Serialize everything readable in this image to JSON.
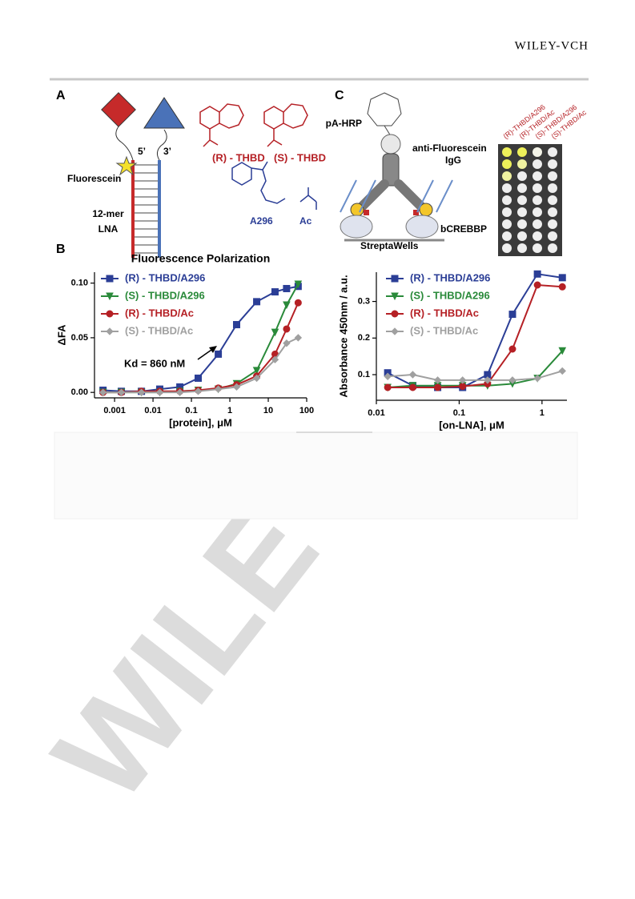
{
  "header": {
    "publisher": "WILEY-VCH"
  },
  "panels": {
    "a": "A",
    "b": "B",
    "c": "C"
  },
  "panel_a": {
    "fluorescein": "Fluorescein",
    "five_prime": "5’",
    "three_prime": "3’",
    "lna": [
      "12-mer",
      "LNA"
    ],
    "r_thbd": "(R) - THBD",
    "s_thbd": "(S) - THBD",
    "a296": "A296",
    "ac": "Ac"
  },
  "panel_c": {
    "pa_hrp": "pA-HRP",
    "antibody": [
      "anti-Fluorescein",
      "IgG"
    ],
    "protein": "bCREBBP",
    "wells": "StreptaWells",
    "plate_labels": [
      "(R)-THBD/A296",
      "(R)-THBD/Ac",
      "(S)-THBD/A296",
      "(S)-THBD/Ac"
    ]
  },
  "watermark": "WILE",
  "chart_data": [
    {
      "type": "line",
      "title": "Fluorescence Polarization",
      "xlabel": "[protein], μM",
      "ylabel": "ΔFA",
      "xscale": "log",
      "xlim": [
        0.0003,
        100
      ],
      "ylim": [
        -0.005,
        0.11
      ],
      "xticks": [
        0.001,
        0.01,
        0.1,
        1,
        10,
        100
      ],
      "yticks": [
        {
          "value": 0,
          "label": "0.00"
        },
        {
          "value": 0.05,
          "label": "0.05"
        },
        {
          "value": 0.1,
          "label": "0.10"
        }
      ],
      "legend": "upper left",
      "annotation": "Kd = 860 nM",
      "x": [
        0.0005,
        0.0015,
        0.005,
        0.015,
        0.05,
        0.15,
        0.5,
        1.5,
        5,
        15,
        30,
        60
      ],
      "series": [
        {
          "name": "(R) - THBD/A296",
          "color": "#2b3e96",
          "marker": "square",
          "values": [
            0.002,
            0.001,
            0.001,
            0.003,
            0.005,
            0.013,
            0.035,
            0.062,
            0.083,
            0.092,
            0.095,
            0.097
          ]
        },
        {
          "name": "(S) - THBD/A296",
          "color": "#2a8a3a",
          "marker": "triangle",
          "values": [
            0,
            0,
            0,
            0,
            0.001,
            0.002,
            0.003,
            0.008,
            0.02,
            0.055,
            0.08,
            0.099
          ]
        },
        {
          "name": "(R) - THBD/Ac",
          "color": "#b52025",
          "marker": "circle",
          "values": [
            0,
            0,
            0.001,
            0.001,
            0.001,
            0.002,
            0.004,
            0.007,
            0.015,
            0.035,
            0.058,
            0.082
          ]
        },
        {
          "name": "(S) - THBD/Ac",
          "color": "#a0a0a0",
          "marker": "diamond",
          "values": [
            0,
            0,
            0,
            0,
            0,
            0.001,
            0.003,
            0.005,
            0.013,
            0.03,
            0.045,
            0.05
          ]
        }
      ]
    },
    {
      "type": "line",
      "xlabel": "[on-LNA], μM",
      "ylabel": "Absorbance 450nm / a.u.",
      "xscale": "log",
      "xlim": [
        0.01,
        2
      ],
      "ylim": [
        0.03,
        0.38
      ],
      "xticks": [
        0.01,
        0.1,
        1
      ],
      "yticks": [
        0.1,
        0.2,
        0.3
      ],
      "legend": "upper left",
      "x": [
        0.0137,
        0.0275,
        0.055,
        0.11,
        0.22,
        0.44,
        0.88,
        1.76
      ],
      "series": [
        {
          "name": "(R) - THBD/A296",
          "color": "#2b3e96",
          "marker": "square",
          "values": [
            0.105,
            0.07,
            0.065,
            0.065,
            0.1,
            0.265,
            0.375,
            0.365
          ]
        },
        {
          "name": "(S) - THBD/A296",
          "color": "#2a8a3a",
          "marker": "triangle",
          "values": [
            0.065,
            0.07,
            0.07,
            0.07,
            0.07,
            0.075,
            0.09,
            0.165
          ]
        },
        {
          "name": "(R) - THBD/Ac",
          "color": "#b52025",
          "marker": "circle",
          "values": [
            0.065,
            0.065,
            0.065,
            0.068,
            0.075,
            0.17,
            0.345,
            0.34
          ]
        },
        {
          "name": "(S) - THBD/Ac",
          "color": "#a0a0a0",
          "marker": "diamond",
          "values": [
            0.095,
            0.1,
            0.085,
            0.085,
            0.085,
            0.085,
            0.09,
            0.11
          ]
        }
      ]
    }
  ]
}
